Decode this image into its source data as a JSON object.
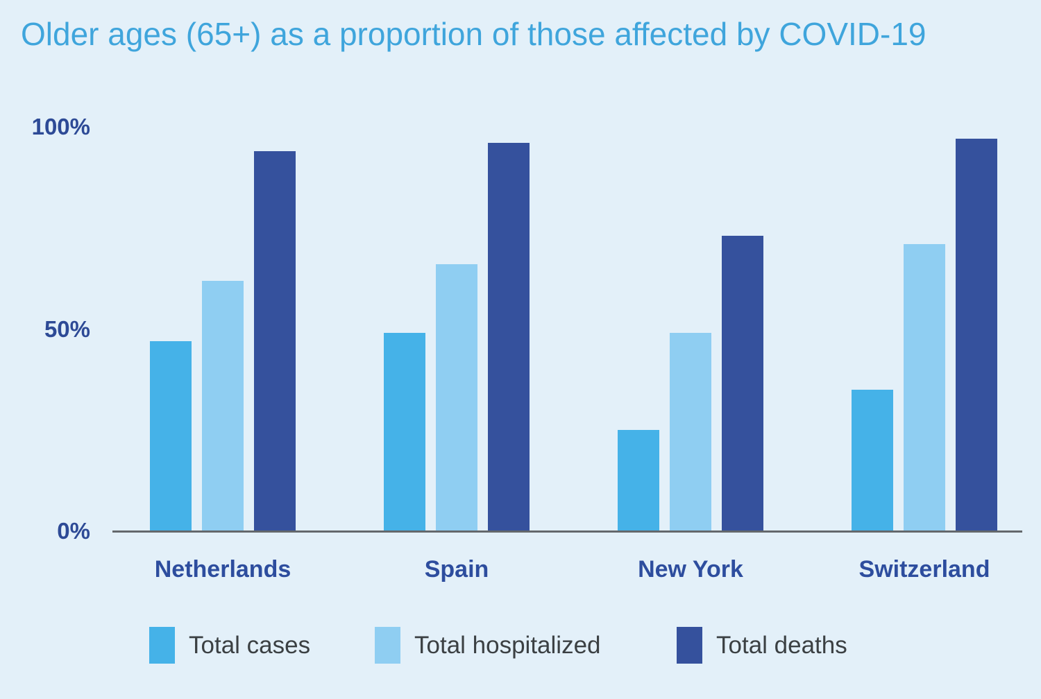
{
  "chart_data": {
    "type": "bar",
    "title": "Older ages (65+) as a proportion of those affected by COVID-19",
    "categories": [
      "Netherlands",
      "Spain",
      "New York",
      "Switzerland"
    ],
    "series": [
      {
        "name": "Total cases",
        "color": "#45b2e8",
        "values": [
          47,
          49,
          25,
          35
        ]
      },
      {
        "name": "Total hospitalized",
        "color": "#8fcef2",
        "values": [
          62,
          66,
          49,
          71
        ]
      },
      {
        "name": "Total deaths",
        "color": "#35519d",
        "values": [
          94,
          96,
          73,
          97
        ]
      }
    ],
    "ylabel": "",
    "xlabel": "",
    "ylim": [
      0,
      100
    ],
    "yticks": [
      {
        "label": "0%",
        "value": 0
      },
      {
        "label": "50%",
        "value": 50
      },
      {
        "label": "100%",
        "value": 100
      }
    ],
    "grid": false,
    "legend_position": "bottom",
    "colors": {
      "background": "#e3f0f9",
      "title": "#3fa5dc",
      "tick_label": "#2d4a96",
      "category_label": "#2d4d9e",
      "axis_line": "#64686c",
      "legend_text": "#3b4043"
    }
  }
}
